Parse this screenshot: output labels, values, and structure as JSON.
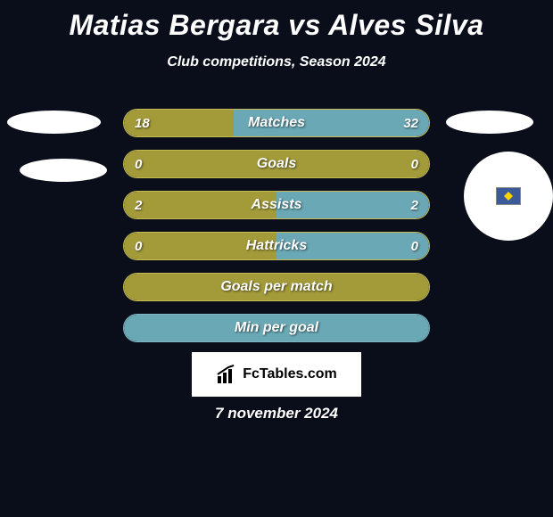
{
  "title": "Matias Bergara vs Alves Silva",
  "subtitle": "Club competitions, Season 2024",
  "date": "7 november 2024",
  "brand": "FcTables.com",
  "colors": {
    "background": "#0a0e1a",
    "left": "#a39a3a",
    "right": "#6aa8b5",
    "left_border": "#c5bc55",
    "right_border": "#7fb8c5",
    "text": "#ffffff"
  },
  "bars": [
    {
      "label": "Matches",
      "left": "18",
      "right": "32",
      "left_pct": 36,
      "right_pct": 64,
      "show_vals": true
    },
    {
      "label": "Goals",
      "left": "0",
      "right": "0",
      "left_pct": 50,
      "right_pct": 50,
      "show_vals": true,
      "full_left": true
    },
    {
      "label": "Assists",
      "left": "2",
      "right": "2",
      "left_pct": 50,
      "right_pct": 50,
      "show_vals": true
    },
    {
      "label": "Hattricks",
      "left": "0",
      "right": "0",
      "left_pct": 50,
      "right_pct": 50,
      "show_vals": true
    },
    {
      "label": "Goals per match",
      "left": "",
      "right": "",
      "left_pct": 100,
      "right_pct": 0,
      "show_vals": false,
      "full_left": true
    },
    {
      "label": "Min per goal",
      "left": "",
      "right": "",
      "left_pct": 0,
      "right_pct": 100,
      "show_vals": false,
      "full_right": true
    }
  ]
}
